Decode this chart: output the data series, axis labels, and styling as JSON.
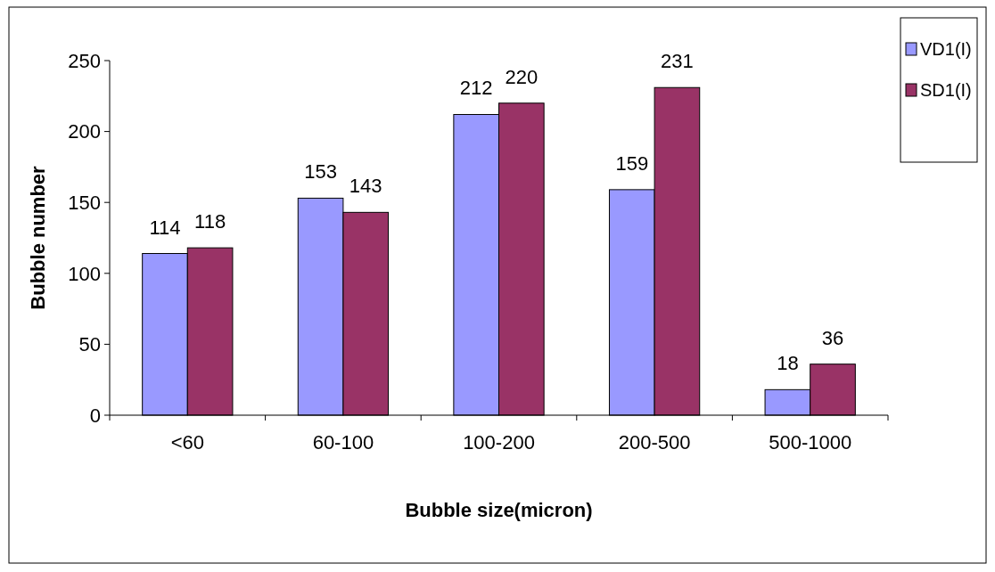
{
  "chart_data": {
    "type": "bar",
    "xlabel": "Bubble size(micron)",
    "ylabel": "Bubble number",
    "categories": [
      "<60",
      "60-100",
      "100-200",
      "200-500",
      "500-1000"
    ],
    "series": [
      {
        "name": "VD1(I)",
        "color": "#9999ff",
        "values": [
          114,
          153,
          212,
          159,
          18
        ]
      },
      {
        "name": "SD1(I)",
        "color": "#993366",
        "values": [
          118,
          143,
          220,
          231,
          36
        ]
      }
    ],
    "ylim": [
      0,
      250
    ],
    "yticks": [
      0,
      50,
      100,
      150,
      200,
      250
    ],
    "data_labels": true,
    "legend": "top right",
    "grid": false
  }
}
